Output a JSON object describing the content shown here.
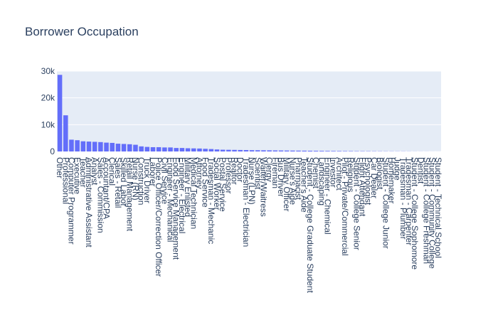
{
  "chart_data": {
    "type": "bar",
    "title": "Borrower Occupation",
    "xlabel": "",
    "ylabel": "",
    "ylim": [
      0,
      30000
    ],
    "yticks": [
      0,
      10000,
      20000,
      30000
    ],
    "ytick_labels": [
      "0",
      "10k",
      "20k",
      "30k"
    ],
    "bar_color": "#636efa",
    "plot_bg": "#e5ecf6",
    "grid": true,
    "categories": [
      "Other",
      "Professional",
      "Computer Programmer",
      "Executive",
      "Teacher",
      "Administrative Assistant",
      "Analyst",
      "Sales - Commission",
      "Accountant/CPA",
      "Clerical",
      "Sales - Retail",
      "Skilled Labor",
      "Retail Management",
      "Nurse (RN)",
      "Construction",
      "Truck Driver",
      "Laborer",
      "Police Officer/Correction Officer",
      "Civil Service",
      "Engineer - Mechanical",
      "Food Service Management",
      "Engineer - Electrical",
      "Military Enlisted",
      "Medical Technician",
      "Attorney",
      "Food Service",
      "Tradesman - Mechanic",
      "Social Worker",
      "Postal Service",
      "Professor",
      "Realtor",
      "Doctor",
      "Tradesman - Electrician",
      "Nurse (LPN)",
      "Scientist",
      "Waiter/Waitress",
      "Clergy",
      "Fireman",
      "Bus Driver",
      "Military Officer",
      "Nurse's Aide",
      "Pharmacist",
      "Teacher's Aide",
      "Student - College Graduate Student",
      "Chemist",
      "Landscaping",
      "Engineer - Chemical",
      "Investor",
      "Architect",
      "Pilot - Private/Commercial",
      "Religious",
      "Student - College Senior",
      "Flight Attendant",
      "Psychologist",
      "Car Dealer",
      "Biologist",
      "Student - College Junior",
      "Homemaker",
      "Judge",
      "Tradesman - Plumber",
      "Tradesman - Carpenter",
      "Student - College Sophomore",
      "Dentist",
      "Student - College Freshman",
      "Student - Community College",
      "Student - Technical School"
    ],
    "values": [
      28600,
      13500,
      4400,
      4200,
      3800,
      3700,
      3600,
      3500,
      3300,
      3200,
      2900,
      2800,
      2700,
      2500,
      1900,
      1700,
      1600,
      1600,
      1500,
      1500,
      1300,
      1300,
      1200,
      1150,
      1100,
      1000,
      900,
      750,
      650,
      620,
      590,
      550,
      520,
      480,
      460,
      440,
      420,
      390,
      370,
      350,
      330,
      310,
      290,
      270,
      250,
      230,
      210,
      190,
      170,
      150,
      140,
      120,
      110,
      100,
      90,
      80,
      70,
      60,
      55,
      50,
      40,
      30,
      25,
      20,
      15,
      10
    ]
  }
}
